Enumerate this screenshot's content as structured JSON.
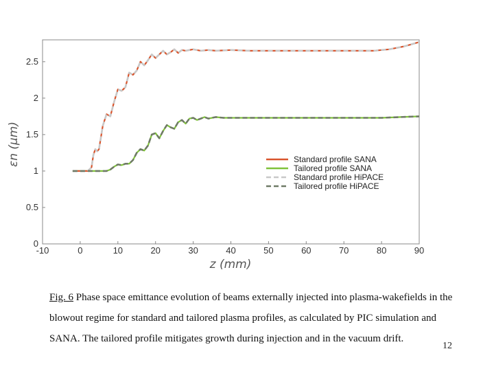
{
  "chart_data": {
    "type": "line",
    "xlabel": "z (mm)",
    "ylabel": "εn (μm)",
    "xlim": [
      -10,
      90
    ],
    "ylim": [
      0,
      2.8
    ],
    "xticks": [
      -10,
      0,
      10,
      20,
      30,
      40,
      50,
      60,
      70,
      80,
      90
    ],
    "yticks": [
      0,
      0.5,
      1,
      1.5,
      2,
      2.5
    ],
    "grid": false,
    "legend_position": "inside-right",
    "series": [
      {
        "name": "Standard profile SANA",
        "color": "#d9542c",
        "style": "solid",
        "x": [
          -2,
          0,
          2,
          3,
          3.5,
          4,
          4.5,
          5,
          6,
          7,
          8,
          9,
          10,
          11,
          12,
          13,
          14,
          15,
          16,
          17,
          18,
          19,
          20,
          21,
          22,
          23,
          24,
          25,
          26,
          27,
          28,
          29,
          30,
          32,
          34,
          36,
          40,
          45,
          50,
          55,
          60,
          65,
          70,
          75,
          78,
          80,
          82,
          84,
          86,
          88,
          90
        ],
        "y": [
          1.0,
          1.0,
          1.0,
          1.05,
          1.22,
          1.3,
          1.27,
          1.3,
          1.62,
          1.78,
          1.75,
          1.95,
          2.12,
          2.1,
          2.15,
          2.35,
          2.32,
          2.38,
          2.5,
          2.45,
          2.52,
          2.6,
          2.55,
          2.6,
          2.65,
          2.6,
          2.63,
          2.67,
          2.62,
          2.66,
          2.65,
          2.66,
          2.67,
          2.65,
          2.66,
          2.65,
          2.66,
          2.65,
          2.65,
          2.65,
          2.65,
          2.65,
          2.65,
          2.65,
          2.65,
          2.66,
          2.67,
          2.69,
          2.71,
          2.74,
          2.77
        ]
      },
      {
        "name": "Tailored profile SANA",
        "color": "#7fc23a",
        "style": "solid",
        "x": [
          -2,
          0,
          4,
          7,
          8,
          9,
          10,
          11,
          12,
          13,
          14,
          15,
          16,
          17,
          18,
          19,
          20,
          21,
          22,
          23,
          24,
          25,
          26,
          27,
          28,
          29,
          30,
          31,
          32,
          33,
          34,
          35,
          36,
          38,
          40,
          45,
          50,
          55,
          60,
          65,
          70,
          75,
          80,
          85,
          90
        ],
        "y": [
          1.0,
          1.0,
          1.0,
          1.0,
          1.02,
          1.06,
          1.09,
          1.08,
          1.1,
          1.1,
          1.15,
          1.25,
          1.3,
          1.28,
          1.35,
          1.5,
          1.52,
          1.45,
          1.55,
          1.63,
          1.6,
          1.58,
          1.67,
          1.7,
          1.65,
          1.72,
          1.73,
          1.7,
          1.72,
          1.74,
          1.72,
          1.73,
          1.74,
          1.73,
          1.73,
          1.73,
          1.73,
          1.73,
          1.73,
          1.73,
          1.73,
          1.73,
          1.73,
          1.74,
          1.75
        ]
      },
      {
        "name": "Standard profile HiPACE",
        "color": "#c8c8c8",
        "style": "dashed",
        "x": [
          -2,
          0,
          2,
          3,
          3.5,
          4,
          4.5,
          5,
          6,
          7,
          8,
          9,
          10,
          11,
          12,
          13,
          14,
          15,
          16,
          17,
          18,
          19,
          20,
          21,
          22,
          23,
          24,
          25,
          26,
          27,
          28,
          29,
          30,
          32,
          34,
          36,
          40,
          45,
          50,
          55,
          60,
          65,
          70,
          75,
          78,
          80,
          82,
          84,
          86,
          88,
          90
        ],
        "y": [
          1.0,
          1.0,
          1.0,
          1.05,
          1.22,
          1.3,
          1.27,
          1.3,
          1.62,
          1.78,
          1.75,
          1.95,
          2.12,
          2.1,
          2.15,
          2.35,
          2.32,
          2.38,
          2.5,
          2.45,
          2.52,
          2.6,
          2.55,
          2.6,
          2.65,
          2.6,
          2.63,
          2.67,
          2.62,
          2.66,
          2.65,
          2.66,
          2.67,
          2.65,
          2.66,
          2.65,
          2.66,
          2.65,
          2.65,
          2.65,
          2.65,
          2.65,
          2.65,
          2.65,
          2.65,
          2.66,
          2.67,
          2.69,
          2.71,
          2.74,
          2.77
        ]
      },
      {
        "name": "Tailored profile HiPACE",
        "color": "#6f7a66",
        "style": "dashed",
        "x": [
          -2,
          0,
          4,
          7,
          8,
          9,
          10,
          11,
          12,
          13,
          14,
          15,
          16,
          17,
          18,
          19,
          20,
          21,
          22,
          23,
          24,
          25,
          26,
          27,
          28,
          29,
          30,
          31,
          32,
          33,
          34,
          35,
          36,
          38,
          40,
          45,
          50,
          55,
          60,
          65,
          70,
          75,
          80,
          85,
          90
        ],
        "y": [
          1.0,
          1.0,
          1.0,
          1.0,
          1.02,
          1.06,
          1.09,
          1.08,
          1.1,
          1.1,
          1.15,
          1.25,
          1.3,
          1.28,
          1.35,
          1.5,
          1.52,
          1.45,
          1.55,
          1.63,
          1.6,
          1.58,
          1.67,
          1.7,
          1.65,
          1.72,
          1.73,
          1.7,
          1.72,
          1.74,
          1.72,
          1.73,
          1.74,
          1.73,
          1.73,
          1.73,
          1.73,
          1.73,
          1.73,
          1.73,
          1.73,
          1.73,
          1.73,
          1.74,
          1.75
        ]
      }
    ]
  },
  "caption": {
    "label": "Fig. 6",
    "text": " Phase space emittance evolution of beams externally injected into plasma-wakefields in the blowout regime for standard and tailored plasma profiles, as calculated by PIC simulation and SANA. The tailored profile mitigates growth during injection and in the vacuum drift."
  },
  "page_number": "12"
}
